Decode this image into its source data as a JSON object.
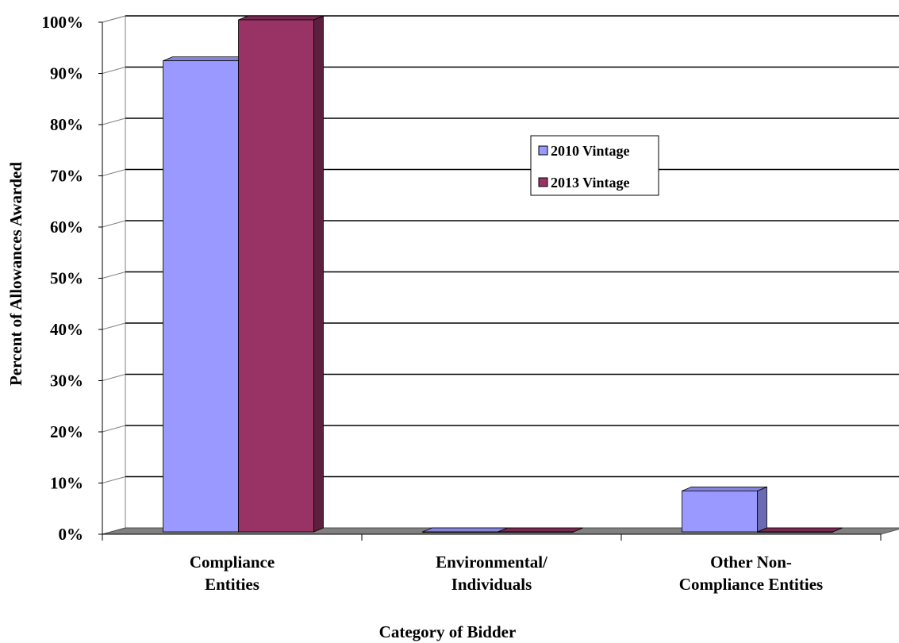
{
  "chart_data": {
    "type": "bar",
    "style": "3d-clustered-column",
    "categories": [
      [
        "Compliance",
        "Entities"
      ],
      [
        "Environmental/",
        "Individuals"
      ],
      [
        "Other Non-",
        "Compliance Entities"
      ]
    ],
    "series": [
      {
        "name": "2010 Vintage",
        "values": [
          92,
          0,
          8
        ],
        "color": "#9999ff",
        "side_color": "#6b6bb3",
        "top_color": "#8484dc"
      },
      {
        "name": "2013 Vintage",
        "values": [
          100,
          0,
          0
        ],
        "color": "#993366",
        "side_color": "#5c1f3d",
        "top_color": "#7a2952"
      }
    ],
    "y_ticks": [
      "0%",
      "10%",
      "20%",
      "30%",
      "40%",
      "50%",
      "60%",
      "70%",
      "80%",
      "90%",
      "100%"
    ],
    "ylim": [
      0,
      100
    ],
    "ylabel": "Percent of Allowances Awarded",
    "xlabel": "Category of Bidder",
    "grid": true,
    "legend_position": "center-right",
    "floor_color": "#808080"
  }
}
